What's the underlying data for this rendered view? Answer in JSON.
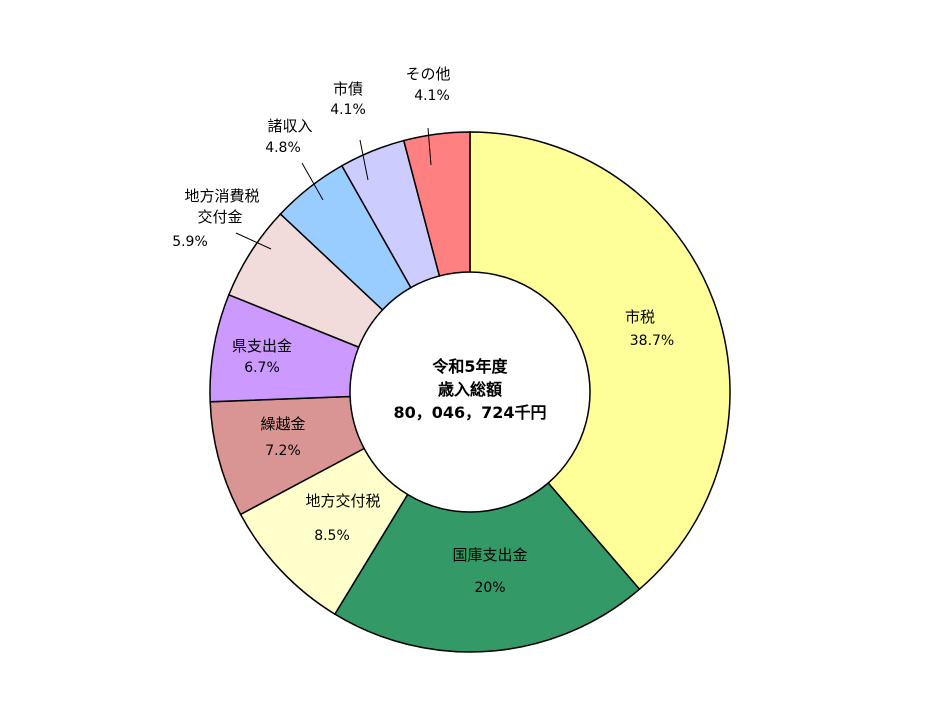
{
  "chart_data": {
    "type": "pie",
    "center_text": {
      "line1": "令和5年度",
      "line2": "歳入総額",
      "line3": "80，046，724千円"
    },
    "slices": [
      {
        "label": "市税",
        "value": 38.7,
        "value_text": "38.7%",
        "color": "#FFFF99"
      },
      {
        "label": "国庫支出金",
        "value": 20,
        "value_text": "20%",
        "color": "#339966"
      },
      {
        "label": "地方交付税",
        "value": 8.5,
        "value_text": "8.5%",
        "color": "#FFFFCC"
      },
      {
        "label": "繰越金",
        "value": 7.2,
        "value_text": "7.2%",
        "color": "#D99594"
      },
      {
        "label": "県支出金",
        "value": 6.7,
        "value_text": "6.7%",
        "color": "#CC99FF"
      },
      {
        "label": "地方消費税交付金",
        "label_lines": [
          "地方消費税",
          "交付金"
        ],
        "value": 5.9,
        "value_text": "5.9%",
        "color": "#F2DCDB"
      },
      {
        "label": "諸収入",
        "value": 4.8,
        "value_text": "4.8%",
        "color": "#99CCFF"
      },
      {
        "label": "市債",
        "value": 4.1,
        "value_text": "4.1%",
        "color": "#CCCCFF"
      },
      {
        "label": "その他",
        "value": 4.1,
        "value_text": "4.1%",
        "color": "#FF8080"
      }
    ]
  }
}
